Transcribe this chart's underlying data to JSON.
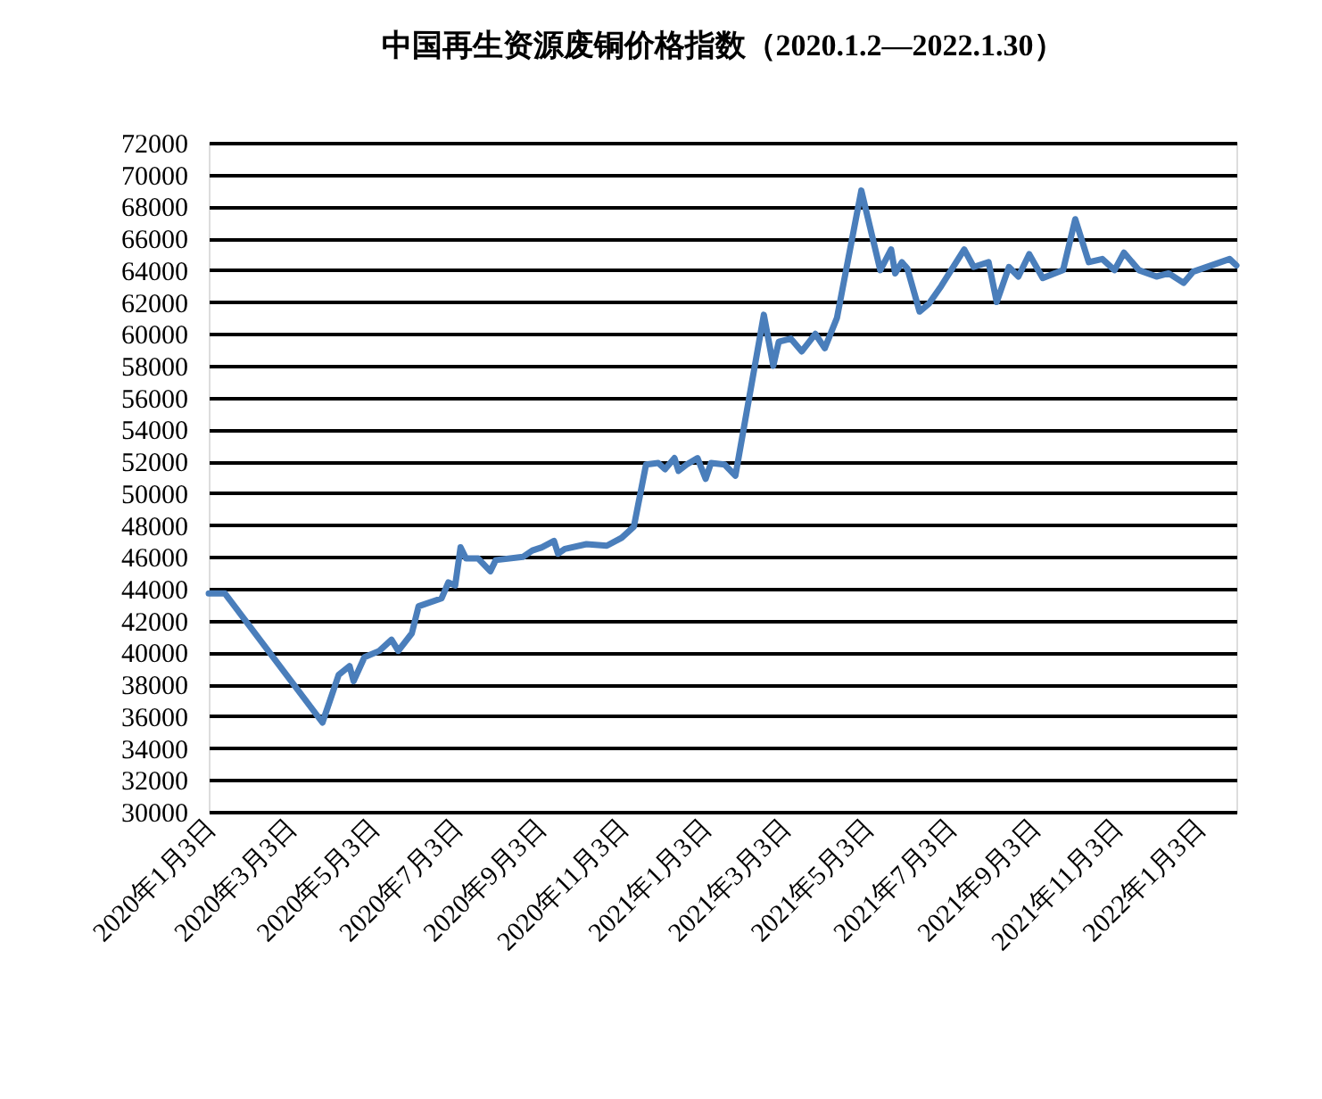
{
  "chart_data": {
    "type": "line",
    "title": "中国再生资源废铜价格指数（2020.1.2—2022.1.30）",
    "x": [
      "2020-01-02",
      "2020-01-14",
      "2020-03-26",
      "2020-04-07",
      "2020-04-15",
      "2020-04-18",
      "2020-04-26",
      "2020-05-07",
      "2020-05-16",
      "2020-05-21",
      "2020-05-31",
      "2020-06-05",
      "2020-06-22",
      "2020-06-27",
      "2020-07-02",
      "2020-07-06",
      "2020-07-10",
      "2020-07-19",
      "2020-07-28",
      "2020-08-01",
      "2020-08-21",
      "2020-08-28",
      "2020-09-04",
      "2020-09-13",
      "2020-09-16",
      "2020-09-21",
      "2020-10-07",
      "2020-10-22",
      "2020-11-02",
      "2020-11-11",
      "2020-11-20",
      "2020-11-29",
      "2020-12-04",
      "2020-12-11",
      "2020-12-14",
      "2020-12-20",
      "2020-12-28",
      "2021-01-03",
      "2021-01-07",
      "2021-01-17",
      "2021-01-25",
      "2021-02-15",
      "2021-02-22",
      "2021-02-26",
      "2021-03-07",
      "2021-03-15",
      "2021-03-25",
      "2021-04-01",
      "2021-04-10",
      "2021-04-28",
      "2021-05-12",
      "2021-05-20",
      "2021-05-23",
      "2021-05-28",
      "2021-06-01",
      "2021-06-10",
      "2021-06-17",
      "2021-06-26",
      "2021-07-13",
      "2021-07-20",
      "2021-07-31",
      "2021-08-06",
      "2021-08-15",
      "2021-08-22",
      "2021-08-30",
      "2021-09-09",
      "2021-09-24",
      "2021-10-03",
      "2021-10-13",
      "2021-10-23",
      "2021-11-01",
      "2021-11-08",
      "2021-11-19",
      "2021-12-02",
      "2021-12-11",
      "2021-12-22",
      "2021-12-29",
      "2022-01-25",
      "2022-01-30"
    ],
    "series": [
      {
        "color": "#4a7ebb",
        "values": [
          43700,
          43700,
          35600,
          38600,
          39150,
          38200,
          39700,
          40100,
          40800,
          40100,
          41200,
          42900,
          43400,
          44400,
          44200,
          46600,
          45900,
          45900,
          45100,
          45800,
          46000,
          46400,
          46600,
          47000,
          46200,
          46500,
          46800,
          46700,
          47200,
          47900,
          51800,
          51900,
          51500,
          52200,
          51400,
          51800,
          52200,
          50900,
          51900,
          51800,
          51100,
          61200,
          58000,
          59500,
          59700,
          58900,
          60000,
          59100,
          61000,
          69000,
          64000,
          65300,
          63800,
          64500,
          64100,
          61400,
          61900,
          63000,
          65300,
          64200,
          64500,
          62000,
          64200,
          63600,
          65000,
          63500,
          64000,
          67200,
          64500,
          64700,
          64000,
          65100,
          64000,
          63600,
          63800,
          63200,
          63900,
          64700,
          64300
        ]
      }
    ],
    "xlim": [
      "2020-01-02",
      "2022-01-30"
    ],
    "xticks": [
      {
        "value": "2020-01-03",
        "label": "2020年1月3日"
      },
      {
        "value": "2020-03-03",
        "label": "2020年3月3日"
      },
      {
        "value": "2020-05-03",
        "label": "2020年5月3日"
      },
      {
        "value": "2020-07-03",
        "label": "2020年7月3日"
      },
      {
        "value": "2020-09-03",
        "label": "2020年9月3日"
      },
      {
        "value": "2020-11-03",
        "label": "2020年11月3日"
      },
      {
        "value": "2021-01-03",
        "label": "2021年1月3日"
      },
      {
        "value": "2021-03-03",
        "label": "2021年3月3日"
      },
      {
        "value": "2021-05-03",
        "label": "2021年5月3日"
      },
      {
        "value": "2021-07-03",
        "label": "2021年7月3日"
      },
      {
        "value": "2021-09-03",
        "label": "2021年9月3日"
      },
      {
        "value": "2021-11-03",
        "label": "2021年11月3日"
      },
      {
        "value": "2022-01-03",
        "label": "2022年1月3日"
      }
    ],
    "ylim": [
      30000,
      72000
    ],
    "yticks": [
      30000,
      32000,
      34000,
      36000,
      38000,
      40000,
      42000,
      44000,
      46000,
      48000,
      50000,
      52000,
      54000,
      56000,
      58000,
      60000,
      62000,
      64000,
      66000,
      68000,
      70000,
      72000
    ],
    "grid": "y",
    "marker": "none",
    "line_style": "solid"
  }
}
